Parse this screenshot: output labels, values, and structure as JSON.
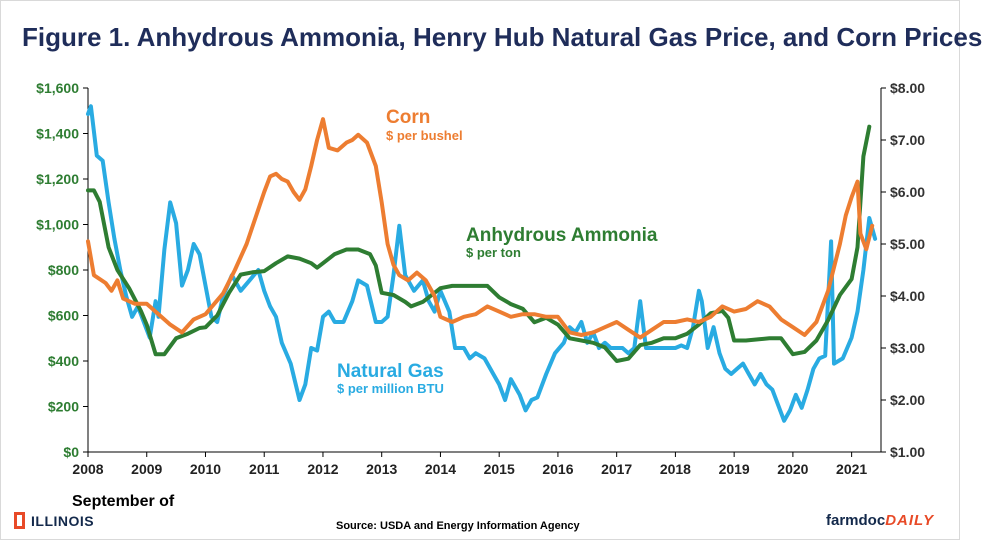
{
  "title": "Figure 1.  Anhydrous Ammonia, Henry Hub Natural Gas Price, and Corn Prices",
  "footnote": "September of",
  "source": "Source:  USDA and Energy Information Agency",
  "logos": {
    "left": "ILLINOIS",
    "right_a": "farmdoc",
    "right_b": "DAILY"
  },
  "colors": {
    "corn": "#ed7d31",
    "ammonia": "#2e7d32",
    "gas": "#29abe2",
    "left_axis": "#2e7d32",
    "title": "#1f2d5a"
  },
  "chart_data": {
    "type": "line",
    "x_range": [
      2008,
      2021.5
    ],
    "x_ticks": [
      "2008",
      "2009",
      "2010",
      "2011",
      "2012",
      "2013",
      "2014",
      "2015",
      "2016",
      "2017",
      "2018",
      "2019",
      "2020",
      "2021"
    ],
    "y_left": {
      "range": [
        0,
        1600
      ],
      "ticks": [
        "$0",
        "$200",
        "$400",
        "$600",
        "$800",
        "$1,000",
        "$1,200",
        "$1,400",
        "$1,600"
      ]
    },
    "y_right": {
      "range": [
        1.0,
        8.0
      ],
      "ticks": [
        "$1.00",
        "$2.00",
        "$3.00",
        "$4.00",
        "$5.00",
        "$6.00",
        "$7.00",
        "$8.00"
      ]
    },
    "grid": false,
    "series": [
      {
        "name": "Corn",
        "unit": "$ per bushel",
        "axis": "right",
        "color": "#ed7d31",
        "points": [
          [
            2008.0,
            5.05
          ],
          [
            2008.1,
            4.4
          ],
          [
            2008.3,
            4.25
          ],
          [
            2008.4,
            4.1
          ],
          [
            2008.5,
            4.3
          ],
          [
            2008.6,
            3.95
          ],
          [
            2008.8,
            3.85
          ],
          [
            2009.0,
            3.85
          ],
          [
            2009.2,
            3.65
          ],
          [
            2009.4,
            3.45
          ],
          [
            2009.6,
            3.3
          ],
          [
            2009.8,
            3.55
          ],
          [
            2010.0,
            3.65
          ],
          [
            2010.3,
            4.05
          ],
          [
            2010.5,
            4.5
          ],
          [
            2010.7,
            5.0
          ],
          [
            2010.85,
            5.5
          ],
          [
            2011.0,
            6.0
          ],
          [
            2011.1,
            6.3
          ],
          [
            2011.2,
            6.35
          ],
          [
            2011.3,
            6.25
          ],
          [
            2011.4,
            6.2
          ],
          [
            2011.5,
            6.0
          ],
          [
            2011.6,
            5.85
          ],
          [
            2011.7,
            6.05
          ],
          [
            2011.8,
            6.5
          ],
          [
            2011.9,
            7.0
          ],
          [
            2012.0,
            7.4
          ],
          [
            2012.1,
            6.85
          ],
          [
            2012.25,
            6.8
          ],
          [
            2012.4,
            6.95
          ],
          [
            2012.5,
            7.0
          ],
          [
            2012.6,
            7.1
          ],
          [
            2012.75,
            6.95
          ],
          [
            2012.9,
            6.5
          ],
          [
            2013.0,
            5.8
          ],
          [
            2013.1,
            5.0
          ],
          [
            2013.2,
            4.6
          ],
          [
            2013.3,
            4.4
          ],
          [
            2013.45,
            4.3
          ],
          [
            2013.6,
            4.45
          ],
          [
            2013.75,
            4.3
          ],
          [
            2013.9,
            4.0
          ],
          [
            2014.0,
            3.6
          ],
          [
            2014.2,
            3.5
          ],
          [
            2014.4,
            3.6
          ],
          [
            2014.6,
            3.65
          ],
          [
            2014.8,
            3.8
          ],
          [
            2015.0,
            3.7
          ],
          [
            2015.2,
            3.6
          ],
          [
            2015.4,
            3.65
          ],
          [
            2015.6,
            3.65
          ],
          [
            2015.8,
            3.6
          ],
          [
            2016.0,
            3.6
          ],
          [
            2016.2,
            3.3
          ],
          [
            2016.4,
            3.25
          ],
          [
            2016.6,
            3.3
          ],
          [
            2016.8,
            3.4
          ],
          [
            2017.0,
            3.5
          ],
          [
            2017.2,
            3.35
          ],
          [
            2017.4,
            3.2
          ],
          [
            2017.6,
            3.35
          ],
          [
            2017.8,
            3.5
          ],
          [
            2018.0,
            3.5
          ],
          [
            2018.2,
            3.55
          ],
          [
            2018.4,
            3.5
          ],
          [
            2018.6,
            3.6
          ],
          [
            2018.8,
            3.8
          ],
          [
            2019.0,
            3.7
          ],
          [
            2019.2,
            3.75
          ],
          [
            2019.4,
            3.9
          ],
          [
            2019.6,
            3.8
          ],
          [
            2019.8,
            3.55
          ],
          [
            2020.0,
            3.4
          ],
          [
            2020.2,
            3.25
          ],
          [
            2020.4,
            3.5
          ],
          [
            2020.6,
            4.1
          ],
          [
            2020.8,
            5.0
          ],
          [
            2020.9,
            5.55
          ],
          [
            2021.0,
            5.9
          ],
          [
            2021.1,
            6.2
          ],
          [
            2021.15,
            5.2
          ],
          [
            2021.25,
            4.9
          ],
          [
            2021.35,
            5.35
          ]
        ]
      },
      {
        "name": "Anhydrous Ammonia",
        "unit": "$ per ton",
        "axis": "left",
        "color": "#2e7d32",
        "points": [
          [
            2008.0,
            1150
          ],
          [
            2008.1,
            1150
          ],
          [
            2008.2,
            1100
          ],
          [
            2008.35,
            900
          ],
          [
            2008.5,
            800
          ],
          [
            2008.7,
            720
          ],
          [
            2008.9,
            620
          ],
          [
            2009.0,
            560
          ],
          [
            2009.15,
            430
          ],
          [
            2009.3,
            430
          ],
          [
            2009.5,
            500
          ],
          [
            2009.7,
            520
          ],
          [
            2009.9,
            545
          ],
          [
            2010.0,
            548
          ],
          [
            2010.2,
            600
          ],
          [
            2010.4,
            700
          ],
          [
            2010.6,
            780
          ],
          [
            2010.8,
            790
          ],
          [
            2011.0,
            795
          ],
          [
            2011.2,
            830
          ],
          [
            2011.4,
            860
          ],
          [
            2011.6,
            850
          ],
          [
            2011.8,
            830
          ],
          [
            2011.9,
            810
          ],
          [
            2012.0,
            830
          ],
          [
            2012.2,
            870
          ],
          [
            2012.4,
            890
          ],
          [
            2012.6,
            890
          ],
          [
            2012.8,
            870
          ],
          [
            2012.9,
            820
          ],
          [
            2013.0,
            700
          ],
          [
            2013.2,
            690
          ],
          [
            2013.4,
            660
          ],
          [
            2013.5,
            640
          ],
          [
            2013.7,
            660
          ],
          [
            2013.9,
            700
          ],
          [
            2014.0,
            720
          ],
          [
            2014.2,
            730
          ],
          [
            2014.5,
            730
          ],
          [
            2014.8,
            730
          ],
          [
            2015.0,
            680
          ],
          [
            2015.2,
            650
          ],
          [
            2015.4,
            630
          ],
          [
            2015.6,
            570
          ],
          [
            2015.8,
            590
          ],
          [
            2016.0,
            560
          ],
          [
            2016.2,
            500
          ],
          [
            2016.4,
            490
          ],
          [
            2016.6,
            480
          ],
          [
            2016.8,
            460
          ],
          [
            2017.0,
            400
          ],
          [
            2017.2,
            410
          ],
          [
            2017.4,
            470
          ],
          [
            2017.6,
            480
          ],
          [
            2017.8,
            500
          ],
          [
            2018.0,
            500
          ],
          [
            2018.2,
            520
          ],
          [
            2018.4,
            560
          ],
          [
            2018.6,
            610
          ],
          [
            2018.8,
            620
          ],
          [
            2018.9,
            590
          ],
          [
            2019.0,
            490
          ],
          [
            2019.2,
            490
          ],
          [
            2019.4,
            495
          ],
          [
            2019.6,
            500
          ],
          [
            2019.8,
            500
          ],
          [
            2020.0,
            430
          ],
          [
            2020.2,
            440
          ],
          [
            2020.4,
            490
          ],
          [
            2020.6,
            580
          ],
          [
            2020.8,
            690
          ],
          [
            2021.0,
            760
          ],
          [
            2021.1,
            900
          ],
          [
            2021.2,
            1300
          ],
          [
            2021.3,
            1430
          ]
        ]
      },
      {
        "name": "Natural Gas",
        "unit": "$ per million  BTU",
        "axis": "right",
        "color": "#29abe2",
        "points": [
          [
            2008.0,
            7.5
          ],
          [
            2008.05,
            7.65
          ],
          [
            2008.15,
            6.7
          ],
          [
            2008.25,
            6.6
          ],
          [
            2008.35,
            5.8
          ],
          [
            2008.45,
            5.1
          ],
          [
            2008.55,
            4.5
          ],
          [
            2008.65,
            4.0
          ],
          [
            2008.75,
            3.6
          ],
          [
            2008.85,
            3.8
          ],
          [
            2008.95,
            3.5
          ],
          [
            2009.05,
            3.2
          ],
          [
            2009.15,
            3.9
          ],
          [
            2009.2,
            3.6
          ],
          [
            2009.3,
            4.9
          ],
          [
            2009.4,
            5.8
          ],
          [
            2009.5,
            5.4
          ],
          [
            2009.6,
            4.2
          ],
          [
            2009.7,
            4.5
          ],
          [
            2009.8,
            5.0
          ],
          [
            2009.9,
            4.8
          ],
          [
            2010.0,
            4.2
          ],
          [
            2010.1,
            3.6
          ],
          [
            2010.2,
            3.5
          ],
          [
            2010.3,
            4.0
          ],
          [
            2010.45,
            4.4
          ],
          [
            2010.6,
            4.1
          ],
          [
            2010.75,
            4.3
          ],
          [
            2010.9,
            4.5
          ],
          [
            2011.0,
            4.1
          ],
          [
            2011.1,
            3.8
          ],
          [
            2011.2,
            3.6
          ],
          [
            2011.3,
            3.1
          ],
          [
            2011.45,
            2.7
          ],
          [
            2011.6,
            2.0
          ],
          [
            2011.7,
            2.3
          ],
          [
            2011.8,
            3.0
          ],
          [
            2011.9,
            2.95
          ],
          [
            2012.0,
            3.6
          ],
          [
            2012.1,
            3.7
          ],
          [
            2012.2,
            3.5
          ],
          [
            2012.35,
            3.5
          ],
          [
            2012.5,
            3.9
          ],
          [
            2012.6,
            4.3
          ],
          [
            2012.75,
            4.2
          ],
          [
            2012.9,
            3.5
          ],
          [
            2013.0,
            3.5
          ],
          [
            2013.1,
            3.6
          ],
          [
            2013.2,
            4.4
          ],
          [
            2013.3,
            5.35
          ],
          [
            2013.4,
            4.4
          ],
          [
            2013.55,
            4.1
          ],
          [
            2013.7,
            4.3
          ],
          [
            2013.8,
            3.9
          ],
          [
            2013.9,
            3.7
          ],
          [
            2014.0,
            4.1
          ],
          [
            2014.15,
            3.7
          ],
          [
            2014.25,
            3.0
          ],
          [
            2014.4,
            3.0
          ],
          [
            2014.5,
            2.8
          ],
          [
            2014.6,
            2.9
          ],
          [
            2014.75,
            2.8
          ],
          [
            2014.9,
            2.5
          ],
          [
            2015.0,
            2.3
          ],
          [
            2015.1,
            2.0
          ],
          [
            2015.2,
            2.4
          ],
          [
            2015.35,
            2.1
          ],
          [
            2015.45,
            1.8
          ],
          [
            2015.55,
            2.0
          ],
          [
            2015.65,
            2.05
          ],
          [
            2015.8,
            2.5
          ],
          [
            2015.95,
            2.9
          ],
          [
            2016.1,
            3.1
          ],
          [
            2016.2,
            3.4
          ],
          [
            2016.3,
            3.3
          ],
          [
            2016.4,
            3.5
          ],
          [
            2016.5,
            3.1
          ],
          [
            2016.6,
            3.3
          ],
          [
            2016.7,
            3.0
          ],
          [
            2016.8,
            3.1
          ],
          [
            2016.9,
            3.0
          ],
          [
            2017.0,
            3.0
          ],
          [
            2017.1,
            3.0
          ],
          [
            2017.2,
            2.9
          ],
          [
            2017.3,
            3.0
          ],
          [
            2017.4,
            3.9
          ],
          [
            2017.5,
            3.0
          ],
          [
            2017.6,
            3.0
          ],
          [
            2017.7,
            3.0
          ],
          [
            2017.8,
            3.0
          ],
          [
            2017.9,
            3.0
          ],
          [
            2018.0,
            3.0
          ],
          [
            2018.1,
            3.05
          ],
          [
            2018.2,
            3.0
          ],
          [
            2018.3,
            3.4
          ],
          [
            2018.4,
            4.1
          ],
          [
            2018.45,
            3.9
          ],
          [
            2018.55,
            3.0
          ],
          [
            2018.65,
            3.4
          ],
          [
            2018.75,
            2.9
          ],
          [
            2018.85,
            2.6
          ],
          [
            2018.95,
            2.5
          ],
          [
            2019.05,
            2.6
          ],
          [
            2019.15,
            2.7
          ],
          [
            2019.25,
            2.5
          ],
          [
            2019.35,
            2.3
          ],
          [
            2019.45,
            2.5
          ],
          [
            2019.55,
            2.3
          ],
          [
            2019.65,
            2.2
          ],
          [
            2019.75,
            1.9
          ],
          [
            2019.85,
            1.6
          ],
          [
            2019.95,
            1.8
          ],
          [
            2020.05,
            2.1
          ],
          [
            2020.15,
            1.85
          ],
          [
            2020.25,
            2.2
          ],
          [
            2020.35,
            2.6
          ],
          [
            2020.45,
            2.8
          ],
          [
            2020.55,
            2.85
          ],
          [
            2020.65,
            5.05
          ],
          [
            2020.7,
            2.7
          ],
          [
            2020.85,
            2.8
          ],
          [
            2021.0,
            3.2
          ],
          [
            2021.1,
            3.7
          ],
          [
            2021.2,
            4.5
          ],
          [
            2021.3,
            5.5
          ],
          [
            2021.4,
            5.1
          ]
        ]
      }
    ]
  }
}
